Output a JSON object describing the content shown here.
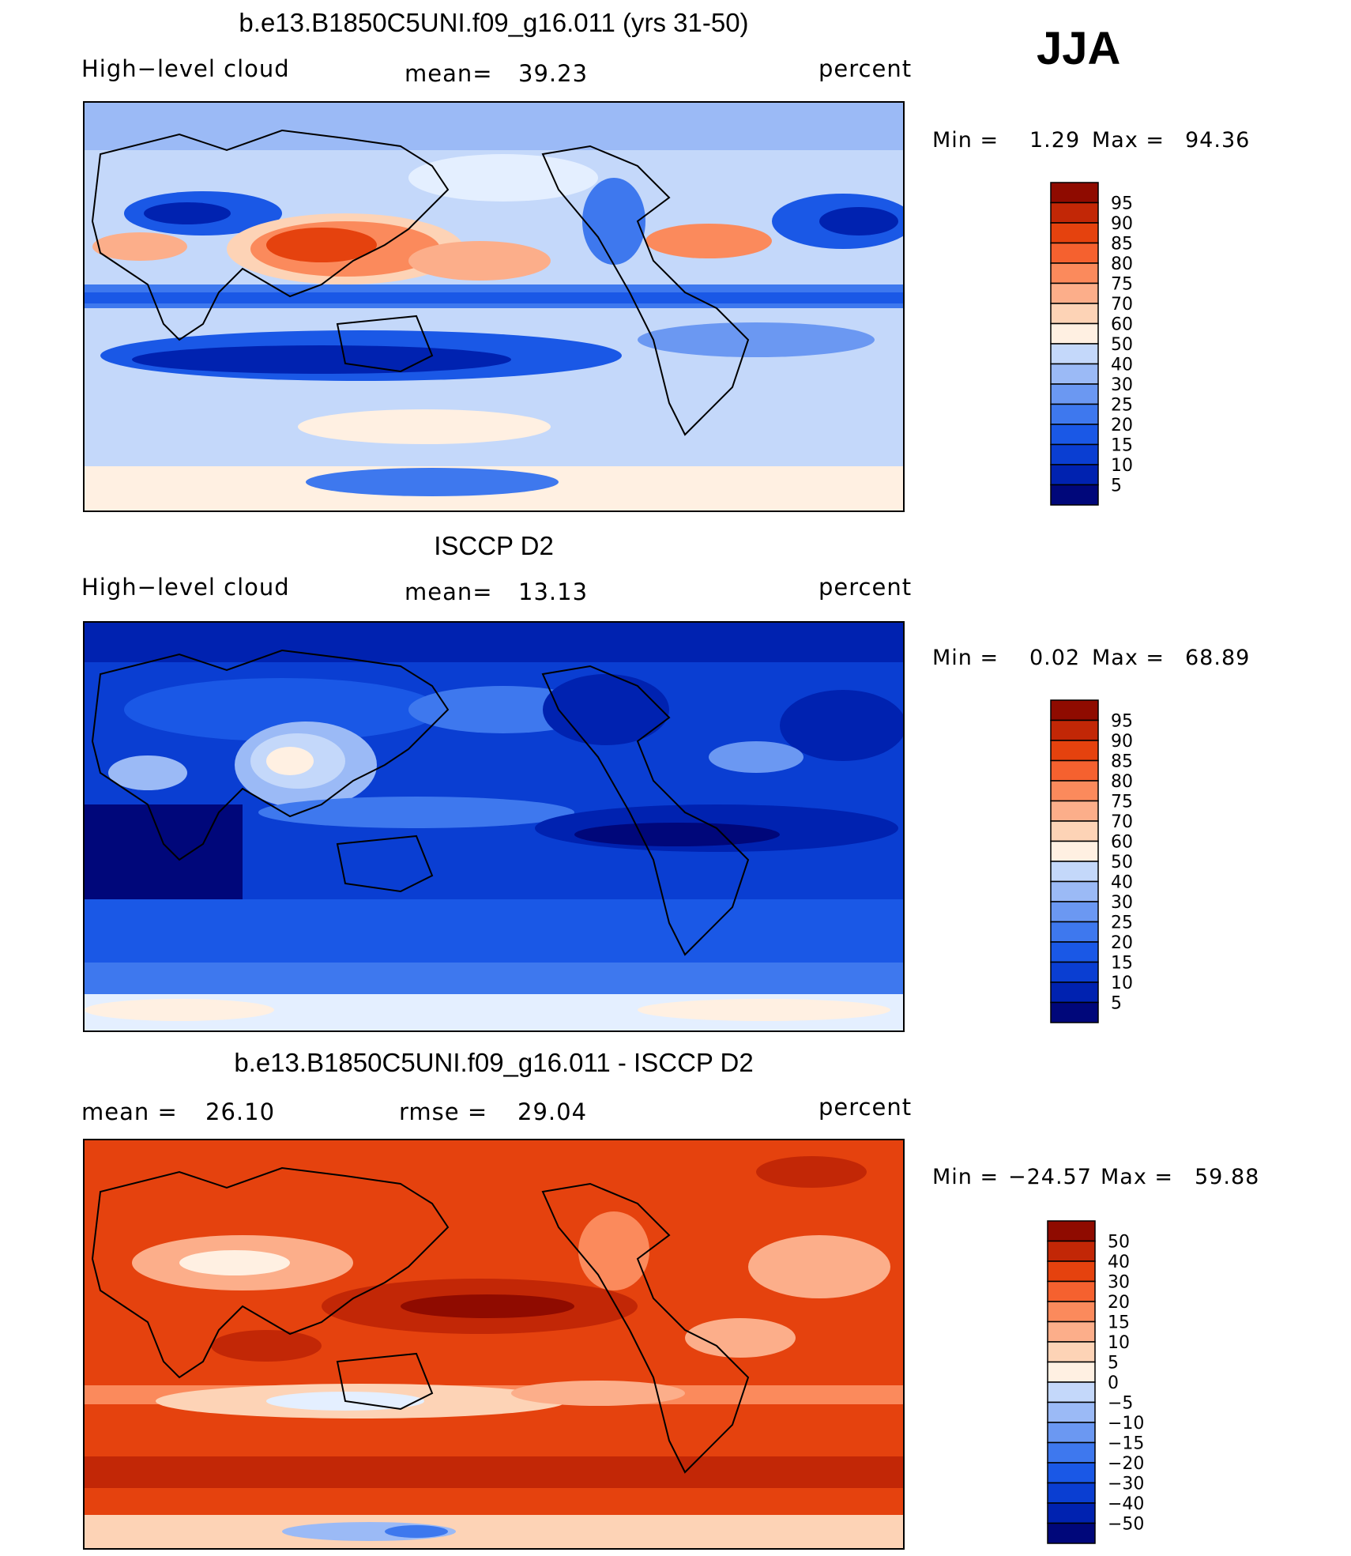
{
  "season": "JJA",
  "colors": {
    "diverging": [
      "#00077a",
      "#0022b0",
      "#0a3ed2",
      "#1a58e6",
      "#3e78ee",
      "#6b98f2",
      "#9bbaf6",
      "#c4d8fa",
      "#e4efff",
      "#fff0e2",
      "#fdd3b6",
      "#fcae8a",
      "#fb8a5c",
      "#f5612f",
      "#e5420e",
      "#c22706",
      "#8f0b00"
    ]
  },
  "panels": [
    {
      "id": "model",
      "title": "b.e13.B1850C5UNI.f09_g16.011 (yrs 31-50)",
      "left_label": "High−level cloud",
      "center_label": "mean=",
      "center_value": "39.23",
      "right_label": "percent",
      "min_label": "Min =",
      "min_value": "1.29",
      "max_label": "Max =",
      "max_value": "94.36",
      "colorbar_levels": [
        "95",
        "90",
        "85",
        "80",
        "75",
        "70",
        "60",
        "50",
        "40",
        "30",
        "25",
        "20",
        "15",
        "10",
        "5"
      ]
    },
    {
      "id": "obs",
      "title": "ISCCP D2",
      "left_label": "High−level cloud",
      "center_label": "mean=",
      "center_value": "13.13",
      "right_label": "percent",
      "min_label": "Min =",
      "min_value": "0.02",
      "max_label": "Max =",
      "max_value": "68.89",
      "colorbar_levels": [
        "95",
        "90",
        "85",
        "80",
        "75",
        "70",
        "60",
        "50",
        "40",
        "30",
        "25",
        "20",
        "15",
        "10",
        "5"
      ]
    },
    {
      "id": "diff",
      "title": "b.e13.B1850C5UNI.f09_g16.011 - ISCCP D2",
      "left_label": "mean =",
      "left_value": "26.10",
      "center_label": "rmse =",
      "center_value": "29.04",
      "right_label": "percent",
      "min_label": "Min =",
      "min_value": "−24.57",
      "max_label": "Max =",
      "max_value": "59.88",
      "colorbar_levels": [
        "50",
        "40",
        "30",
        "20",
        "15",
        "10",
        "5",
        "0",
        "−5",
        "−10",
        "−15",
        "−20",
        "−30",
        "−40",
        "−50"
      ]
    }
  ],
  "chart_data": [
    {
      "type": "heatmap",
      "title": "b.e13.B1850C5UNI.f09_g16.011 (yrs 31-50)",
      "variable": "High−level cloud",
      "units": "percent",
      "mean": 39.23,
      "min": 1.29,
      "max": 94.36,
      "contour_levels": [
        5,
        10,
        15,
        20,
        25,
        30,
        40,
        50,
        60,
        70,
        75,
        80,
        85,
        90,
        95
      ]
    },
    {
      "type": "heatmap",
      "title": "ISCCP D2",
      "variable": "High−level cloud",
      "units": "percent",
      "mean": 13.13,
      "min": 0.02,
      "max": 68.89,
      "contour_levels": [
        5,
        10,
        15,
        20,
        25,
        30,
        40,
        50,
        60,
        70,
        75,
        80,
        85,
        90,
        95
      ]
    },
    {
      "type": "heatmap",
      "title": "b.e13.B1850C5UNI.f09_g16.011 - ISCCP D2",
      "units": "percent",
      "mean": 26.1,
      "rmse": 29.04,
      "min": -24.57,
      "max": 59.88,
      "contour_levels": [
        -50,
        -40,
        -30,
        -20,
        -15,
        -10,
        -5,
        0,
        5,
        10,
        15,
        20,
        30,
        40,
        50
      ]
    }
  ]
}
